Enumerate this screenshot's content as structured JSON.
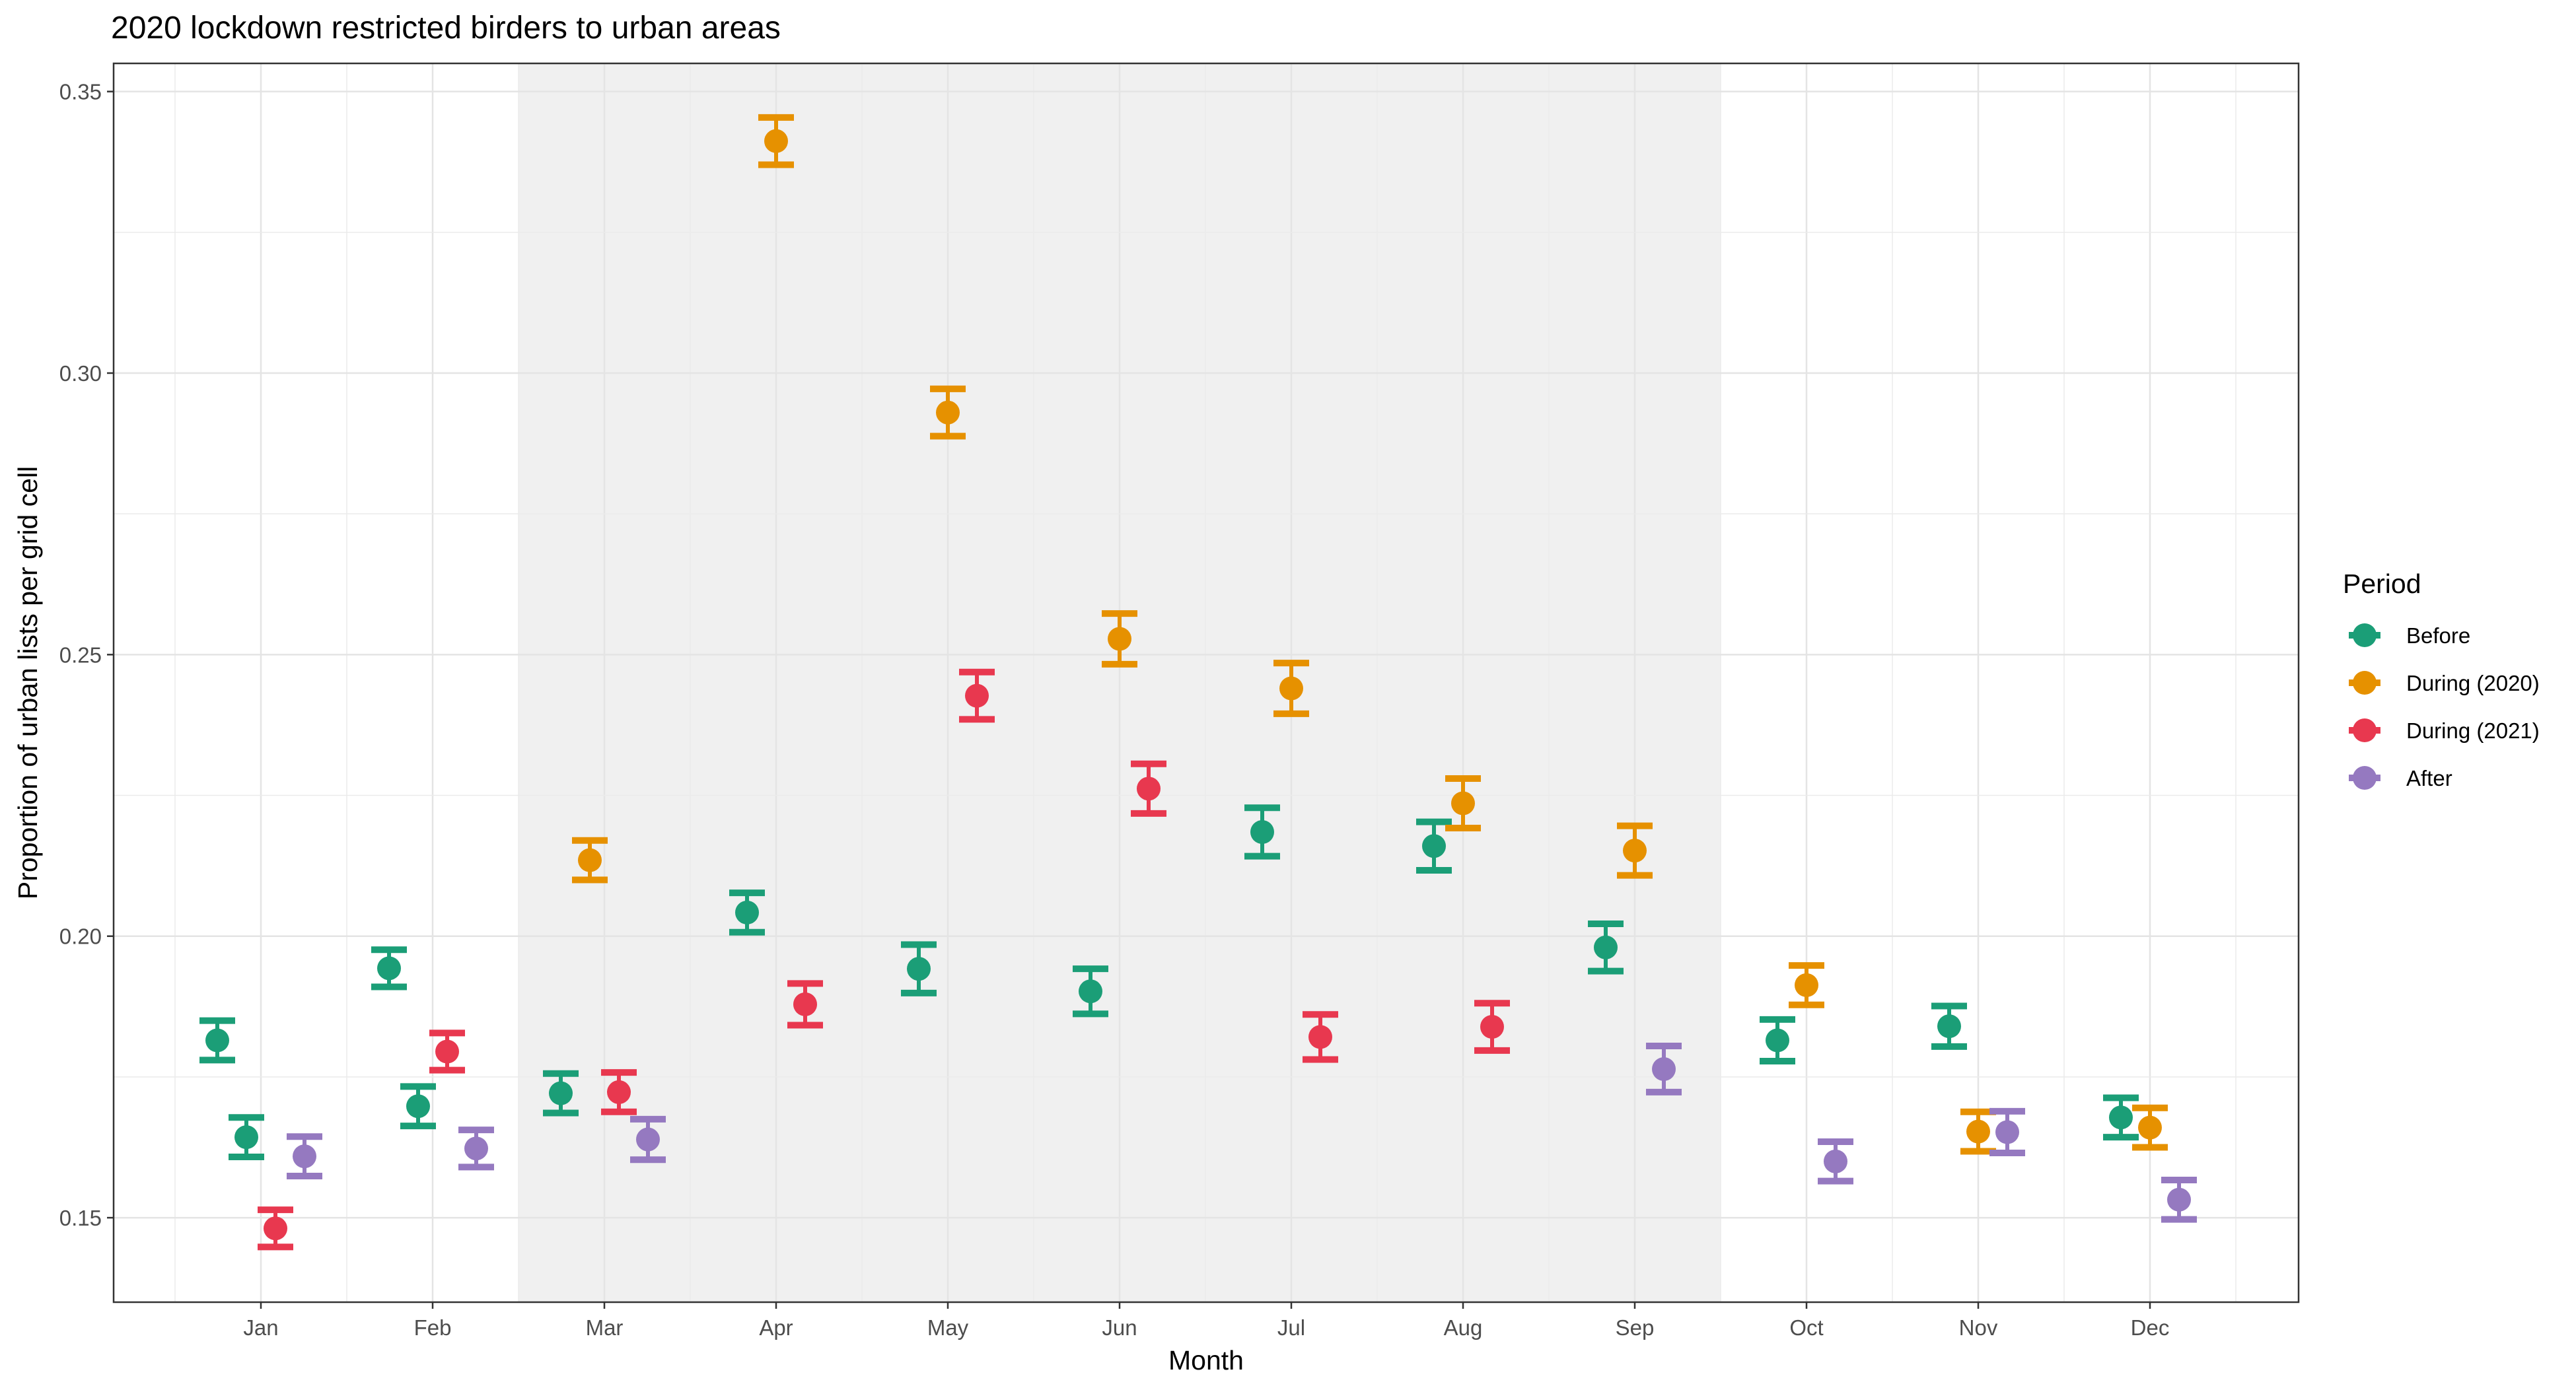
{
  "chart_data": {
    "type": "scatter",
    "title": "2020 lockdown restricted birders to urban areas",
    "xlabel": "Month",
    "ylabel": "Proportion of urban lists per grid cell",
    "categories": [
      "Jan",
      "Feb",
      "Mar",
      "Apr",
      "May",
      "Jun",
      "Jul",
      "Aug",
      "Sep",
      "Oct",
      "Nov",
      "Dec"
    ],
    "ylim": [
      0.135,
      0.355
    ],
    "yticks": [
      0.15,
      0.2,
      0.25,
      0.3,
      0.35
    ],
    "ytick_labels": [
      "0.15",
      "0.20",
      "0.25",
      "0.30",
      "0.35"
    ],
    "shaded_region": {
      "from": "Mar",
      "to": "Sep",
      "color": "#ebebeb"
    },
    "grid": true,
    "legend": {
      "title": "Period",
      "position": "right"
    },
    "series": [
      {
        "name": "Before",
        "color": "#1b9e77",
        "points": [
          {
            "month": "Jan",
            "y": 0.1815,
            "lo": 0.178,
            "hi": 0.185
          },
          {
            "month": "Jan",
            "y": 0.1643,
            "lo": 0.1608,
            "hi": 0.1678
          },
          {
            "month": "Feb",
            "y": 0.1943,
            "lo": 0.191,
            "hi": 0.1976
          },
          {
            "month": "Feb",
            "y": 0.1698,
            "lo": 0.1663,
            "hi": 0.1733
          },
          {
            "month": "Mar",
            "y": 0.1721,
            "lo": 0.1686,
            "hi": 0.1756
          },
          {
            "month": "Apr",
            "y": 0.2042,
            "lo": 0.2007,
            "hi": 0.2077
          },
          {
            "month": "May",
            "y": 0.1942,
            "lo": 0.1899,
            "hi": 0.1985
          },
          {
            "month": "Jun",
            "y": 0.1902,
            "lo": 0.1862,
            "hi": 0.1942
          },
          {
            "month": "Jul",
            "y": 0.2185,
            "lo": 0.2142,
            "hi": 0.2228
          },
          {
            "month": "Aug",
            "y": 0.216,
            "lo": 0.2117,
            "hi": 0.2203
          },
          {
            "month": "Sep",
            "y": 0.198,
            "lo": 0.1938,
            "hi": 0.2022
          },
          {
            "month": "Oct",
            "y": 0.1815,
            "lo": 0.1778,
            "hi": 0.1852
          },
          {
            "month": "Nov",
            "y": 0.184,
            "lo": 0.1804,
            "hi": 0.1876
          },
          {
            "month": "Dec",
            "y": 0.1678,
            "lo": 0.1643,
            "hi": 0.1713
          }
        ]
      },
      {
        "name": "During (2020)",
        "color": "#e69100",
        "points": [
          {
            "month": "Mar",
            "y": 0.2135,
            "lo": 0.21,
            "hi": 0.217
          },
          {
            "month": "Apr",
            "y": 0.3412,
            "lo": 0.337,
            "hi": 0.3454
          },
          {
            "month": "May",
            "y": 0.293,
            "lo": 0.2888,
            "hi": 0.2972
          },
          {
            "month": "Jun",
            "y": 0.2528,
            "lo": 0.2483,
            "hi": 0.2573
          },
          {
            "month": "Jul",
            "y": 0.244,
            "lo": 0.2395,
            "hi": 0.2485
          },
          {
            "month": "Aug",
            "y": 0.2236,
            "lo": 0.2192,
            "hi": 0.228
          },
          {
            "month": "Sep",
            "y": 0.2152,
            "lo": 0.2108,
            "hi": 0.2196
          },
          {
            "month": "Oct",
            "y": 0.1913,
            "lo": 0.1878,
            "hi": 0.1948
          },
          {
            "month": "Nov",
            "y": 0.1653,
            "lo": 0.1618,
            "hi": 0.1688
          },
          {
            "month": "Dec",
            "y": 0.166,
            "lo": 0.1625,
            "hi": 0.1695
          }
        ]
      },
      {
        "name": "During (2021)",
        "color": "#e8384f",
        "points": [
          {
            "month": "Jan",
            "y": 0.1481,
            "lo": 0.1448,
            "hi": 0.1514
          },
          {
            "month": "Feb",
            "y": 0.1795,
            "lo": 0.1762,
            "hi": 0.1828
          },
          {
            "month": "Mar",
            "y": 0.1723,
            "lo": 0.1688,
            "hi": 0.1758
          },
          {
            "month": "Apr",
            "y": 0.1879,
            "lo": 0.1842,
            "hi": 0.1916
          },
          {
            "month": "May",
            "y": 0.2427,
            "lo": 0.2385,
            "hi": 0.2469
          },
          {
            "month": "Jun",
            "y": 0.2262,
            "lo": 0.2218,
            "hi": 0.2306
          },
          {
            "month": "Jul",
            "y": 0.1821,
            "lo": 0.1781,
            "hi": 0.1861
          },
          {
            "month": "Aug",
            "y": 0.1839,
            "lo": 0.1797,
            "hi": 0.1881
          }
        ]
      },
      {
        "name": "After",
        "color": "#9579c0",
        "points": [
          {
            "month": "Jan",
            "y": 0.1609,
            "lo": 0.1574,
            "hi": 0.1644
          },
          {
            "month": "Feb",
            "y": 0.1623,
            "lo": 0.159,
            "hi": 0.1656
          },
          {
            "month": "Mar",
            "y": 0.1639,
            "lo": 0.1603,
            "hi": 0.1675
          },
          {
            "month": "Sep",
            "y": 0.1764,
            "lo": 0.1723,
            "hi": 0.1805
          },
          {
            "month": "Oct",
            "y": 0.16,
            "lo": 0.1565,
            "hi": 0.1635
          },
          {
            "month": "Nov",
            "y": 0.1652,
            "lo": 0.1615,
            "hi": 0.1689
          },
          {
            "month": "Dec",
            "y": 0.1532,
            "lo": 0.1497,
            "hi": 0.1567
          }
        ]
      }
    ]
  }
}
